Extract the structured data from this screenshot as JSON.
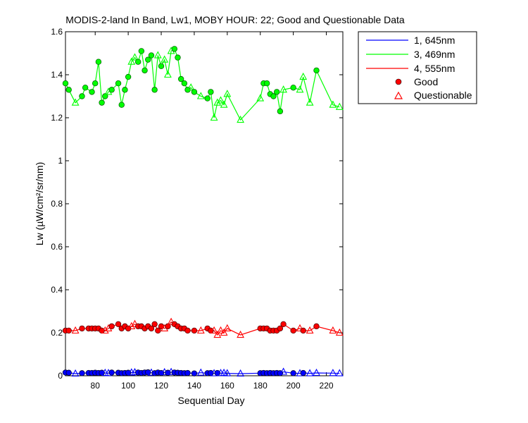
{
  "chart_data": {
    "type": "line",
    "title": "MODIS-2-land In Band,  Lw1, MOBY HOUR: 22;  Good and Questionable Data",
    "xlabel": "Sequential Day",
    "ylabel": "Lw (µW/cm²/sr/nm)",
    "xlim": [
      62,
      230
    ],
    "ylim": [
      0,
      1.6
    ],
    "xticks": [
      80,
      100,
      120,
      140,
      160,
      180,
      200,
      220
    ],
    "yticks": [
      0,
      0.2,
      0.4,
      0.6,
      0.8,
      1,
      1.2,
      1.4,
      1.6
    ],
    "grid": false,
    "legend_position": "outside-top-right",
    "legend": {
      "series_labels": [
        "1, 645nm",
        "3, 469nm",
        "4, 555nm"
      ],
      "marker_labels": [
        "Good",
        "Questionable"
      ]
    },
    "series": [
      {
        "name": "1, 645nm",
        "color": "#0000ff",
        "x": [
          62,
          64,
          68,
          72,
          76,
          78,
          80,
          82,
          84,
          86,
          88,
          90,
          94,
          96,
          98,
          100,
          102,
          104,
          106,
          108,
          110,
          112,
          114,
          116,
          118,
          120,
          122,
          124,
          126,
          128,
          130,
          132,
          134,
          136,
          140,
          144,
          148,
          150,
          152,
          154,
          156,
          158,
          160,
          168,
          180,
          182,
          184,
          186,
          188,
          190,
          192,
          194,
          200,
          204,
          206,
          210,
          214,
          224,
          228
        ],
        "y": [
          0.015,
          0.014,
          0.01,
          0.012,
          0.013,
          0.013,
          0.014,
          0.013,
          0.014,
          0.013,
          0.012,
          0.015,
          0.014,
          0.012,
          0.013,
          0.014,
          0.015,
          0.016,
          0.015,
          0.013,
          0.015,
          0.016,
          0.014,
          0.012,
          0.015,
          0.013,
          0.016,
          0.014,
          0.017,
          0.015,
          0.014,
          0.013,
          0.012,
          0.013,
          0.011,
          0.014,
          0.012,
          0.013,
          0.011,
          0.013,
          0.012,
          0.013,
          0.011,
          0.01,
          0.012,
          0.013,
          0.012,
          0.013,
          0.012,
          0.013,
          0.012,
          0.018,
          0.012,
          0.011,
          0.013,
          0.011,
          0.013,
          0.012,
          0.011
        ],
        "quality": [
          "G",
          "G",
          "Q",
          "G",
          "G",
          "G",
          "G",
          "G",
          "G",
          "Q",
          "Q",
          "G",
          "G",
          "G",
          "G",
          "G",
          "Q",
          "Q",
          "G",
          "G",
          "G",
          "G",
          "Q",
          "G",
          "G",
          "G",
          "Q",
          "G",
          "Q",
          "G",
          "G",
          "G",
          "G",
          "G",
          "G",
          "Q",
          "G",
          "G",
          "Q",
          "G",
          "Q",
          "Q",
          "Q",
          "Q",
          "G",
          "G",
          "G",
          "G",
          "G",
          "G",
          "G",
          "Q",
          "G",
          "Q",
          "G",
          "Q",
          "Q",
          "Q",
          "Q"
        ]
      },
      {
        "name": "3, 469nm",
        "color": "#00ff00",
        "x": [
          62,
          64,
          68,
          72,
          74,
          78,
          80,
          82,
          84,
          86,
          88,
          90,
          94,
          96,
          98,
          100,
          102,
          104,
          106,
          108,
          110,
          112,
          114,
          116,
          118,
          120,
          122,
          124,
          126,
          128,
          130,
          132,
          134,
          136,
          138,
          140,
          144,
          148,
          150,
          152,
          154,
          156,
          158,
          160,
          168,
          180,
          182,
          184,
          186,
          188,
          190,
          192,
          194,
          200,
          204,
          206,
          210,
          214,
          224,
          228
        ],
        "y": [
          1.36,
          1.33,
          1.27,
          1.3,
          1.34,
          1.32,
          1.36,
          1.46,
          1.27,
          1.3,
          1.32,
          1.33,
          1.36,
          1.26,
          1.33,
          1.39,
          1.46,
          1.48,
          1.46,
          1.51,
          1.42,
          1.47,
          1.49,
          1.33,
          1.49,
          1.44,
          1.47,
          1.4,
          1.51,
          1.52,
          1.48,
          1.38,
          1.36,
          1.33,
          1.34,
          1.32,
          1.3,
          1.29,
          1.32,
          1.2,
          1.27,
          1.28,
          1.26,
          1.31,
          1.19,
          1.29,
          1.36,
          1.36,
          1.31,
          1.3,
          1.32,
          1.23,
          1.33,
          1.34,
          1.33,
          1.39,
          1.27,
          1.42,
          1.26,
          1.25
        ],
        "quality": [
          "G",
          "G",
          "Q",
          "G",
          "G",
          "G",
          "G",
          "G",
          "G",
          "G",
          "Q",
          "G",
          "G",
          "G",
          "G",
          "G",
          "Q",
          "Q",
          "G",
          "G",
          "G",
          "G",
          "G",
          "G",
          "Q",
          "G",
          "Q",
          "Q",
          "Q",
          "G",
          "G",
          "G",
          "G",
          "G",
          "Q",
          "G",
          "Q",
          "G",
          "G",
          "Q",
          "Q",
          "Q",
          "Q",
          "Q",
          "Q",
          "Q",
          "G",
          "G",
          "G",
          "G",
          "G",
          "G",
          "Q",
          "G",
          "Q",
          "Q",
          "Q",
          "G",
          "Q",
          "Q"
        ]
      },
      {
        "name": "4, 555nm",
        "color": "#ff0000",
        "x": [
          62,
          64,
          68,
          72,
          76,
          78,
          80,
          82,
          84,
          86,
          88,
          90,
          94,
          96,
          98,
          100,
          102,
          104,
          106,
          108,
          110,
          112,
          114,
          116,
          118,
          120,
          122,
          124,
          126,
          128,
          130,
          132,
          134,
          136,
          140,
          144,
          148,
          150,
          152,
          154,
          156,
          158,
          160,
          168,
          180,
          182,
          184,
          186,
          188,
          190,
          192,
          194,
          200,
          204,
          206,
          210,
          214,
          224,
          228
        ],
        "y": [
          0.21,
          0.21,
          0.21,
          0.22,
          0.22,
          0.22,
          0.22,
          0.22,
          0.21,
          0.21,
          0.22,
          0.23,
          0.24,
          0.22,
          0.23,
          0.22,
          0.23,
          0.24,
          0.23,
          0.23,
          0.22,
          0.23,
          0.22,
          0.24,
          0.21,
          0.23,
          0.22,
          0.23,
          0.25,
          0.24,
          0.23,
          0.22,
          0.22,
          0.21,
          0.21,
          0.21,
          0.22,
          0.21,
          0.21,
          0.19,
          0.21,
          0.2,
          0.22,
          0.19,
          0.22,
          0.22,
          0.22,
          0.21,
          0.21,
          0.21,
          0.22,
          0.24,
          0.21,
          0.22,
          0.21,
          0.21,
          0.23,
          0.21,
          0.2
        ],
        "quality": [
          "G",
          "G",
          "Q",
          "G",
          "G",
          "G",
          "G",
          "G",
          "G",
          "Q",
          "Q",
          "G",
          "G",
          "G",
          "G",
          "G",
          "Q",
          "Q",
          "G",
          "G",
          "G",
          "G",
          "G",
          "G",
          "G",
          "G",
          "Q",
          "G",
          "Q",
          "G",
          "G",
          "G",
          "G",
          "G",
          "G",
          "Q",
          "G",
          "G",
          "Q",
          "Q",
          "Q",
          "Q",
          "Q",
          "Q",
          "G",
          "G",
          "G",
          "G",
          "G",
          "G",
          "G",
          "G",
          "G",
          "Q",
          "G",
          "Q",
          "G",
          "Q",
          "Q"
        ]
      }
    ]
  }
}
